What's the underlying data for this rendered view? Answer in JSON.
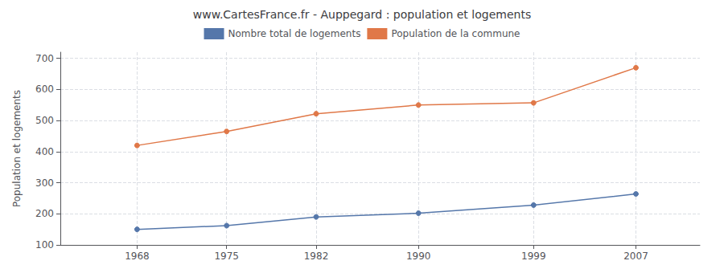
{
  "chart_data": {
    "type": "line",
    "title": "www.CartesFrance.fr - Auppegard : population et logements",
    "ylabel": "Population et logements",
    "x": [
      1968,
      1975,
      1982,
      1990,
      1999,
      2007
    ],
    "series": [
      {
        "name": "Nombre total de logements",
        "color": "#5577aa",
        "values": [
          150,
          162,
          190,
          202,
          228,
          264
        ]
      },
      {
        "name": "Population de la commune",
        "color": "#e07848",
        "values": [
          420,
          465,
          522,
          550,
          557,
          670
        ]
      }
    ],
    "xlim": [
      1962,
      2012
    ],
    "xticks": [
      1968,
      1975,
      1982,
      1990,
      1999,
      2007
    ],
    "ylim": [
      100,
      720
    ],
    "yticks": [
      100,
      200,
      300,
      400,
      500,
      600,
      700
    ],
    "grid": true,
    "legend": "top",
    "marker": "circle"
  }
}
